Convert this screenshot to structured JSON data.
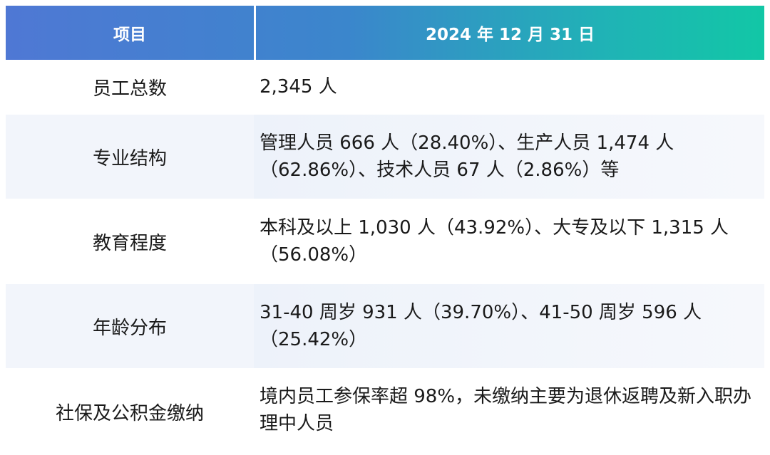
{
  "header": {
    "col1": "项目",
    "col2": "2024 年 12 月 31 日"
  },
  "rows": [
    {
      "label": "员工总数",
      "value": "2,345 人"
    },
    {
      "label": "专业结构",
      "value": "管理人员 666 人（28.40%）、生产人员 1,474 人（62.86%）、技术人员 67 人（2.86%）等"
    },
    {
      "label": "教育程度",
      "value": "本科及以上 1,030 人（43.92%）、大专及以下 1,315 人（56.08%）"
    },
    {
      "label": "年龄分布",
      "value": "31-40 周岁 931 人（39.70%）、41-50 周岁 596 人（25.42%）"
    },
    {
      "label": "社保及公积金缴纳",
      "value": "境内员工参保率超 98%，未缴纳主要为退休返聘及新入职办理中人员"
    }
  ]
}
